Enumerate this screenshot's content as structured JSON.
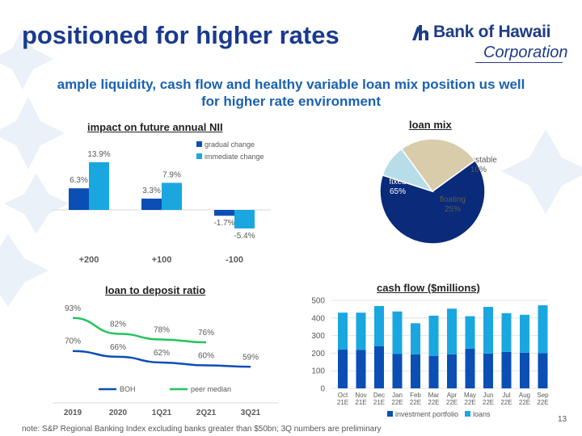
{
  "header": {
    "title": "positioned for higher rates",
    "logo_name": "Bank of Hawaii",
    "logo_subtitle": "Corporation",
    "subtitle": "ample liquidity, cash flow and healthy variable loan mix position us well for higher rate environment"
  },
  "footer": {
    "note": "note: S&P Regional Banking Index excluding banks greater than $50bn; 3Q numbers are preliminary",
    "page_number": "13"
  },
  "colors": {
    "title": "#1a3a8f",
    "subtitle": "#1a62b0",
    "dark_blue": "#0b4fb5",
    "light_blue": "#1aa7e0",
    "navy": "#0a2a7a",
    "pale_blue": "#b7dde8",
    "tan": "#d8ccaa",
    "green": "#22c55e"
  },
  "chart_data": [
    {
      "id": "nii",
      "type": "bar",
      "title": "impact on future annual NII",
      "categories": [
        "+200",
        "+100",
        "-100"
      ],
      "series": [
        {
          "name": "gradual change",
          "values": [
            6.3,
            3.3,
            -1.7
          ],
          "labels": [
            "6.3%",
            "3.3%",
            "-1.7%"
          ],
          "color": "#0b4fb5"
        },
        {
          "name": "immediate change",
          "values": [
            13.9,
            7.9,
            -5.4
          ],
          "labels": [
            "13.9%",
            "7.9%",
            "-5.4%"
          ],
          "color": "#1aa7e0"
        }
      ],
      "legend": "top-right",
      "ylim": [
        -7,
        16
      ]
    },
    {
      "id": "mix",
      "type": "pie",
      "title": "loan mix",
      "slices": [
        {
          "name": "fixed",
          "value": 65,
          "label": "65%",
          "color": "#0a2a7a"
        },
        {
          "name": "adjustable",
          "value": 10,
          "label": "10%",
          "color": "#b7dde8"
        },
        {
          "name": "floating",
          "value": 25,
          "label": "25%",
          "color": "#d8ccaa"
        }
      ]
    },
    {
      "id": "ltd",
      "type": "line",
      "title": "loan to deposit ratio",
      "categories": [
        "2019",
        "2020",
        "1Q21",
        "2Q21",
        "3Q21"
      ],
      "series": [
        {
          "name": "BOH",
          "values": [
            70,
            66,
            62,
            60,
            59
          ],
          "labels": [
            "70%",
            "66%",
            "62%",
            "60%",
            "59%"
          ],
          "color": "#0b4fb5"
        },
        {
          "name": "peer median",
          "values": [
            93,
            82,
            78,
            76,
            null
          ],
          "labels": [
            "93%",
            "82%",
            "78%",
            "76%",
            ""
          ],
          "color": "#22c55e"
        }
      ],
      "legend": "bottom",
      "ylim": [
        35,
        100
      ]
    },
    {
      "id": "cash",
      "type": "bar",
      "stacked": true,
      "title": "cash flow ($millions)",
      "categories": [
        [
          "Oct",
          "21E"
        ],
        [
          "Nov",
          "21E"
        ],
        [
          "Dec",
          "21E"
        ],
        [
          "Jan",
          "22E"
        ],
        [
          "Feb",
          "22E"
        ],
        [
          "Mar",
          "22E"
        ],
        [
          "Apr",
          "22E"
        ],
        [
          "May",
          "22E"
        ],
        [
          "Jun",
          "22E"
        ],
        [
          "Jul",
          "22E"
        ],
        [
          "Aug",
          "22E"
        ],
        [
          "Sep",
          "22E"
        ]
      ],
      "series": [
        {
          "name": "investment portfolio",
          "values": [
            220,
            218,
            240,
            195,
            193,
            185,
            193,
            225,
            198,
            207,
            203,
            200
          ],
          "color": "#0b4fb5"
        },
        {
          "name": "loans",
          "values": [
            210,
            212,
            228,
            242,
            177,
            228,
            260,
            185,
            265,
            220,
            215,
            272
          ],
          "color": "#1aa7e0"
        }
      ],
      "ylim": [
        0,
        500
      ],
      "yticks": [
        0,
        100,
        200,
        300,
        400,
        500
      ],
      "legend": "bottom"
    }
  ]
}
